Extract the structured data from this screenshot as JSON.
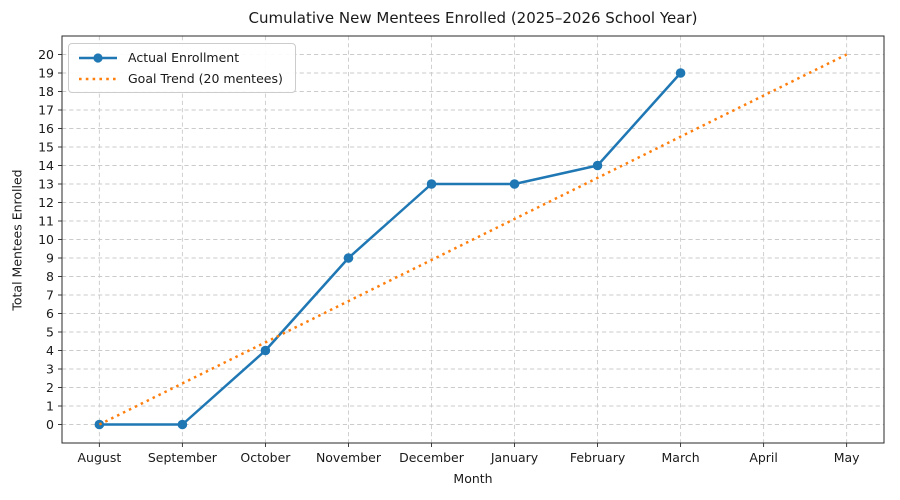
{
  "chart": {
    "title": "Cumulative New Mentees Enrolled (2025–2026 School Year)",
    "xlabel": "Month",
    "ylabel": "Total Mentees Enrolled"
  },
  "chart_data": {
    "type": "line",
    "title": "Cumulative New Mentees Enrolled (2025–2026 School Year)",
    "xlabel": "Month",
    "ylabel": "Total Mentees Enrolled",
    "categories": [
      "August",
      "September",
      "October",
      "November",
      "December",
      "January",
      "February",
      "March",
      "April",
      "May"
    ],
    "series": [
      {
        "name": "Actual Enrollment",
        "color": "#1f77b4",
        "line_style": "solid",
        "marker": "circle",
        "values": [
          0,
          0,
          4,
          9,
          13,
          13,
          14,
          19,
          null,
          null
        ]
      },
      {
        "name": "Goal Trend (20 mentees)",
        "color": "#ff7f0e",
        "line_style": "dotted",
        "marker": "none",
        "values": [
          0,
          2.22,
          4.44,
          6.67,
          8.89,
          11.11,
          13.33,
          15.56,
          17.78,
          20
        ]
      }
    ],
    "ylim": [
      -1,
      21
    ],
    "yticks": [
      0,
      1,
      2,
      3,
      4,
      5,
      6,
      7,
      8,
      9,
      10,
      11,
      12,
      13,
      14,
      15,
      16,
      17,
      18,
      19,
      20
    ],
    "grid": true,
    "legend_position": "upper left"
  }
}
